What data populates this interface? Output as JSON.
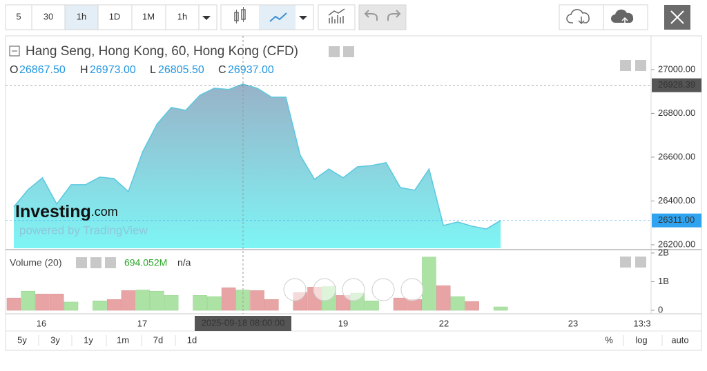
{
  "toolbar": {
    "intervals": [
      "5",
      "30",
      "1h",
      "1D",
      "1M",
      "1h"
    ]
  },
  "chart_data": {
    "type": "area",
    "title": "Hang Seng, Hong Kong, 60, Hong Kong (CFD)",
    "ohlc": {
      "labels": [
        "O",
        "H",
        "L",
        "C"
      ],
      "values": [
        26867.5,
        26973,
        26805.5,
        26937
      ],
      "value_labels": [
        "26867.50",
        "26973.00",
        "26805.50",
        "26937.00"
      ]
    },
    "values": [
      26373,
      26452,
      26506,
      26386,
      26474,
      26474,
      26509,
      26502,
      26443,
      26625,
      26751,
      26827,
      26814,
      26883,
      26915,
      26909,
      26934,
      26915,
      26874,
      26874,
      26609,
      26499,
      26546,
      26506,
      26556,
      26562,
      26575,
      26461,
      26449,
      26546,
      26288,
      26304,
      26285,
      26272,
      26311
    ],
    "color": "#5bc8e0",
    "ylim": [
      26184,
      27154
    ],
    "yticks": [
      {
        "value": 26200,
        "label": "26200.00"
      },
      {
        "value": 26400,
        "label": "26400.00"
      },
      {
        "value": 26600,
        "label": "26600.00"
      },
      {
        "value": 26800,
        "label": "26800.00"
      },
      {
        "value": 27000,
        "label": "27000.00"
      }
    ],
    "price_markers": [
      {
        "value": 26928.39,
        "label": "26928.39",
        "color": "#555555"
      },
      {
        "value": 26311,
        "label": "26311.00",
        "color": "#2fa3f0"
      }
    ],
    "x_labels": [
      "16",
      "17",
      "19",
      "22",
      "23",
      "13:3"
    ],
    "crosshair_label": "2025-09-18 08:00:00",
    "volume": {
      "title": "Volume (20)",
      "value_label": "694.052M",
      "extra": "n/a",
      "values": [
        430000000,
        670000000,
        570000000,
        570000000,
        290000000,
        0,
        330000000,
        380000000,
        690000000,
        710000000,
        670000000,
        520000000,
        0,
        520000000,
        480000000,
        790000000,
        710000000,
        690000000,
        380000000,
        0,
        620000000,
        810000000,
        830000000,
        520000000,
        600000000,
        330000000,
        0,
        430000000,
        380000000,
        1860000000,
        860000000,
        480000000,
        310000000,
        0,
        120000000
      ],
      "colors": [
        "#e8a4a4",
        "#ace3a4",
        "#e8a4a4",
        "#e8a4a4",
        "#ace3a4",
        "#ace3a4",
        "#ace3a4",
        "#e8a4a4",
        "#e8a4a4",
        "#ace3a4",
        "#ace3a4",
        "#ace3a4",
        "#ace3a4",
        "#ace3a4",
        "#ace3a4",
        "#e8a4a4",
        "#ace3a4",
        "#e8a4a4",
        "#e8a4a4",
        "#e8a4a4",
        "#e8a4a4",
        "#e8a4a4",
        "#ace3a4",
        "#e8a4a4",
        "#ace3a4",
        "#ace3a4",
        "#ace3a4",
        "#e8a4a4",
        "#e8a4a4",
        "#ace3a4",
        "#e8a4a4",
        "#ace3a4",
        "#e8a4a4",
        "#ace3a4",
        "#ace3a4"
      ],
      "ylim": [
        -120000000,
        2070000000
      ],
      "yticks": [
        0,
        {
          "value": 1000000000,
          "label": "1B"
        },
        {
          "value": 2000000000,
          "label": "2B"
        }
      ]
    }
  },
  "watermark": {
    "brand": "Investing",
    "suffix": ".com",
    "powered": "powered by TradingView"
  },
  "bottom_bar": {
    "ranges": [
      "5y",
      "3y",
      "1y",
      "1m",
      "7d",
      "1d"
    ],
    "options": [
      "%",
      "log",
      "auto"
    ]
  }
}
